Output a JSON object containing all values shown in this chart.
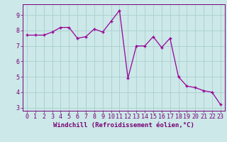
{
  "x": [
    0,
    1,
    2,
    3,
    4,
    5,
    6,
    7,
    8,
    9,
    10,
    11,
    12,
    13,
    14,
    15,
    16,
    17,
    18,
    19,
    20,
    21,
    22,
    23
  ],
  "y": [
    7.7,
    7.7,
    7.7,
    7.9,
    8.2,
    8.2,
    7.5,
    7.6,
    8.1,
    7.9,
    8.6,
    9.3,
    4.9,
    7.0,
    7.0,
    7.6,
    6.9,
    7.5,
    5.0,
    4.4,
    4.3,
    4.1,
    4.0,
    3.2
  ],
  "line_color": "#990099",
  "marker_color": "#990099",
  "bg_color": "#cce8e8",
  "grid_color": "#aacece",
  "axis_label_color": "#770077",
  "xlabel": "Windchill (Refroidissement éolien,°C)",
  "xlim": [
    -0.5,
    23.5
  ],
  "ylim": [
    2.8,
    9.7
  ],
  "yticks": [
    3,
    4,
    5,
    6,
    7,
    8,
    9
  ],
  "xticks": [
    0,
    1,
    2,
    3,
    4,
    5,
    6,
    7,
    8,
    9,
    10,
    11,
    12,
    13,
    14,
    15,
    16,
    17,
    18,
    19,
    20,
    21,
    22,
    23
  ],
  "tick_label_color": "#770077",
  "spine_color": "#770077",
  "font_size_xlabel": 6.5,
  "font_size_ticks": 6.0
}
